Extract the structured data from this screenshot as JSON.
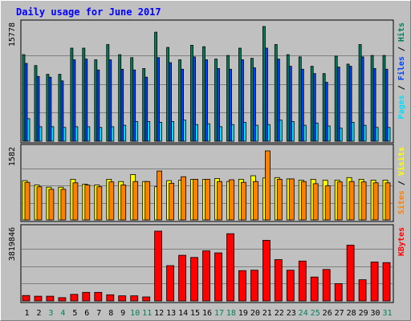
{
  "chart_data": {
    "type": "bar",
    "title": "Daily usage for June 2017",
    "categories": [
      "1",
      "2",
      "3",
      "4",
      "5",
      "6",
      "7",
      "8",
      "9",
      "10",
      "11",
      "12",
      "13",
      "14",
      "15",
      "16",
      "17",
      "18",
      "19",
      "20",
      "21",
      "22",
      "23",
      "24",
      "25",
      "26",
      "27",
      "28",
      "29",
      "30",
      "31"
    ],
    "weekend_days": [
      "3",
      "4",
      "10",
      "11",
      "17",
      "18",
      "24",
      "25",
      "31"
    ],
    "panels": [
      {
        "name": "top",
        "y_max_label": "15778",
        "y_max": 15778,
        "legend": [
          {
            "label": "Hits",
            "color": "#00805c"
          },
          {
            "label": "/",
            "color": "#000000"
          },
          {
            "label": "Files",
            "color": "#0040ff"
          },
          {
            "label": "/",
            "color": "#000000"
          },
          {
            "label": "Pages",
            "color": "#00e0ff"
          }
        ],
        "series": [
          {
            "name": "Hits",
            "color": "#00805c",
            "values": [
              11900,
              10400,
              9200,
              9200,
              12800,
              12800,
              11200,
              13300,
              11900,
              11500,
              10000,
              15000,
              12900,
              11200,
              13200,
              13000,
              11300,
              11800,
              12800,
              11400,
              15778,
              13300,
              11900,
              11600,
              10300,
              9300,
              11700,
              10600,
              13300,
              11800,
              11800
            ]
          },
          {
            "name": "Files",
            "color": "#0040ff",
            "values": [
              10700,
              8900,
              8800,
              8300,
              11200,
              11300,
              9800,
              11200,
              9900,
              9800,
              8800,
              11500,
              10800,
              9900,
              11600,
              11200,
              10000,
              9900,
              11200,
              10100,
              12800,
              11300,
              10300,
              9900,
              9300,
              8100,
              10200,
              10300,
              11600,
              10000,
              9900
            ]
          },
          {
            "name": "Pages",
            "color": "#00e0ff",
            "values": [
              3100,
              2000,
              2000,
              1900,
              2000,
              2000,
              1900,
              2000,
              2200,
              2700,
              2700,
              2600,
              2700,
              2900,
              2300,
              2400,
              2000,
              2300,
              2600,
              2200,
              2300,
              2900,
              2700,
              2200,
              2500,
              2100,
              1800,
              2600,
              2200,
              1900,
              1900
            ]
          }
        ]
      },
      {
        "name": "middle",
        "y_max_label": "1582",
        "y_max": 1582,
        "legend": [
          {
            "label": "Visits",
            "color": "#ffff00"
          },
          {
            "label": "/",
            "color": "#000000"
          },
          {
            "label": "Sites",
            "color": "#ff8000"
          }
        ],
        "series": [
          {
            "name": "Visits",
            "color": "#ffff00",
            "values": [
              900,
              800,
              750,
              750,
              930,
              820,
              800,
              930,
              880,
              1040,
              880,
              760,
              900,
              910,
              930,
              930,
              950,
              880,
              930,
              1012,
              960,
              970,
              940,
              910,
              930,
              910,
              910,
              970,
              930,
              910,
              910
            ]
          },
          {
            "name": "Sites",
            "color": "#ff8000",
            "values": [
              860,
              760,
              700,
              700,
              850,
              800,
              760,
              870,
              800,
              880,
              880,
              1120,
              840,
              990,
              930,
              930,
              880,
              920,
              860,
              880,
              1582,
              930,
              940,
              880,
              830,
              780,
              870,
              880,
              870,
              850,
              850
            ]
          }
        ]
      },
      {
        "name": "bottom",
        "y_max_label": "3819846",
        "y_max": 3819846,
        "legend": [
          {
            "label": "KBytes",
            "color": "#ff0000"
          }
        ],
        "series": [
          {
            "name": "KBytes",
            "color": "#ff0000",
            "values": [
              300000,
              260000,
              260000,
              180000,
              360000,
              470000,
              470000,
              340000,
              280000,
              280000,
              220000,
              3819846,
              1930000,
              2500000,
              2380000,
              2740000,
              2630000,
              3680000,
              1660000,
              1680000,
              3320000,
              2260000,
              1680000,
              2180000,
              1310000,
              1720000,
              950000,
              3050000,
              1160000,
              2130000,
              2100000
            ]
          }
        ]
      }
    ]
  }
}
